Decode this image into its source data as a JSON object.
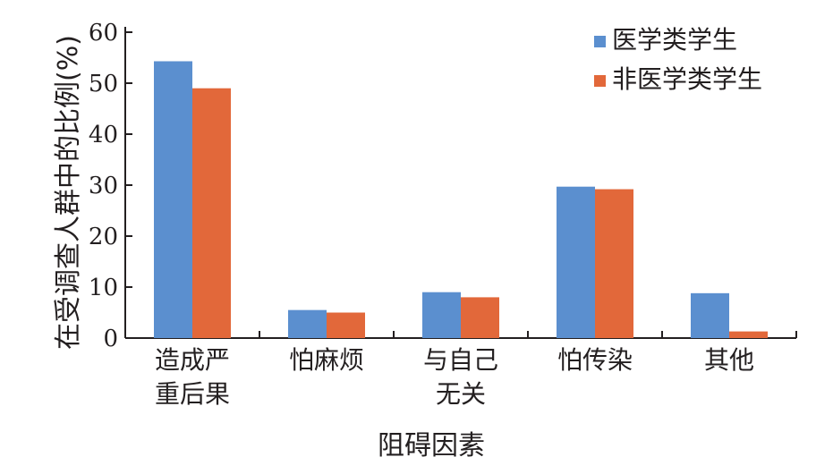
{
  "chart_data": {
    "type": "bar",
    "categories": [
      [
        "造成严",
        "重后果"
      ],
      [
        "怕麻烦"
      ],
      [
        "与自己",
        "无关"
      ],
      [
        "怕传染"
      ],
      [
        "其他"
      ]
    ],
    "series": [
      {
        "name": "医学类学生",
        "color": "#5b8fcf",
        "values": [
          54.3,
          5.5,
          9.0,
          29.7,
          8.8
        ]
      },
      {
        "name": "非医学类学生",
        "color": "#e2683a",
        "values": [
          49.0,
          5.0,
          8.0,
          29.2,
          1.3
        ]
      }
    ],
    "xlabel": "阻碍因素",
    "ylabel": "在受调查人群中的比例(%)",
    "ylim": [
      0,
      60
    ],
    "yticks": [
      0,
      10,
      20,
      30,
      40,
      50,
      60
    ],
    "grid": false,
    "legend_position": "top-right"
  }
}
